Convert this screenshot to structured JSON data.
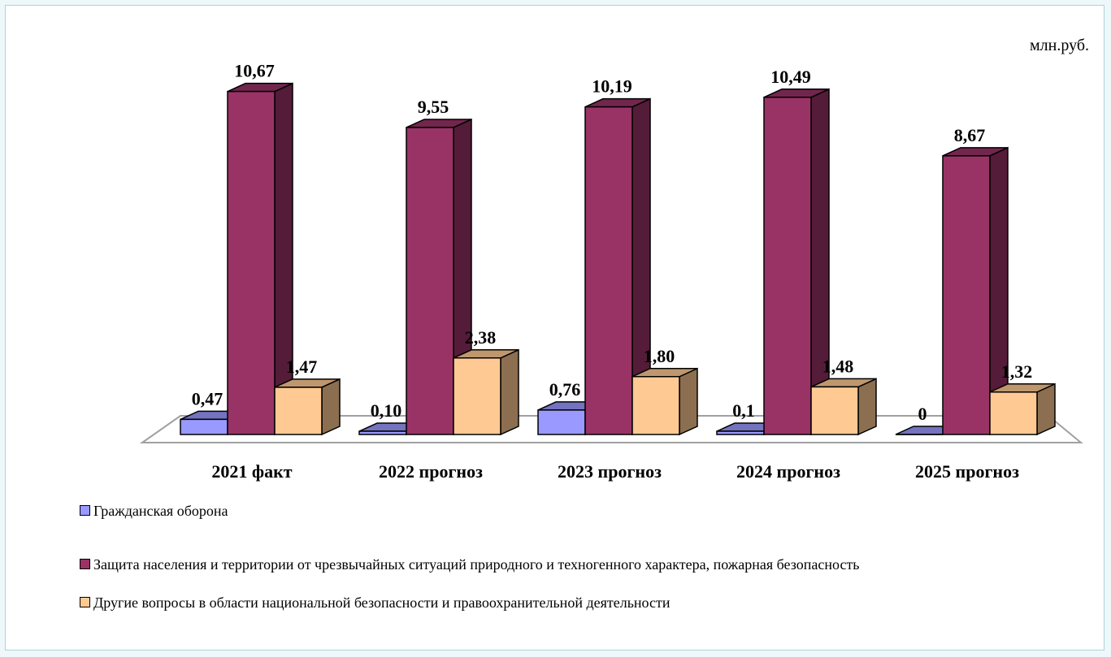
{
  "chart_data": {
    "type": "bar3d",
    "unit": "млн.руб.",
    "categories": [
      "2021 факт",
      "2022 прогноз",
      "2023 прогноз",
      "2024 прогноз",
      "2025 прогноз"
    ],
    "series": [
      {
        "name": "Гражданская оборона",
        "color": "#9999ff",
        "values": [
          0.47,
          0.1,
          0.76,
          0.1,
          0
        ],
        "value_labels": [
          "0,47",
          "0,10",
          "0,76",
          "0,1",
          "0"
        ]
      },
      {
        "name": "Защита населения и территории от чрезвычайных ситуаций природного и техногенного характера, пожарная безопасность",
        "color": "#993366",
        "values": [
          10.67,
          9.55,
          10.19,
          10.49,
          8.67
        ],
        "value_labels": [
          "10,67",
          "9,55",
          "10,19",
          "10,49",
          "8,67"
        ]
      },
      {
        "name": "Другие вопросы в области национальной безопасности и правоохранительной деятельности",
        "color": "#ffc993",
        "values": [
          1.47,
          2.38,
          1.8,
          1.48,
          1.32
        ],
        "value_labels": [
          "1,47",
          "2,38",
          "1,80",
          "1,48",
          "1,32"
        ]
      }
    ],
    "ylim": [
      0,
      12
    ],
    "legend": "bottom"
  }
}
